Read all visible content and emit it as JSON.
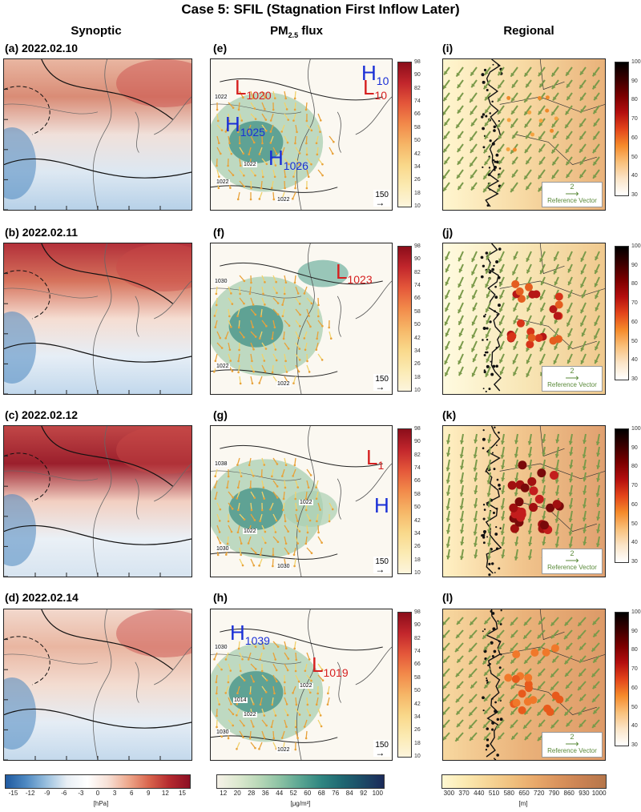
{
  "figure": {
    "title": "Case 5: SFIL (Stagnation First Inflow Later)",
    "columns": {
      "synoptic": "Synoptic",
      "pm25_flux_main": "PM",
      "pm25_flux_sub": "2.5",
      "pm25_flux_tail": " flux",
      "regional": "Regional"
    }
  },
  "rows": [
    {
      "synoptic_label": "(a) 2022.02.10",
      "flux_label": "(e)",
      "regional_label": "(i)",
      "systems": [
        {
          "type": "L",
          "value": "1020",
          "color": "red"
        },
        {
          "type": "H",
          "value": "1025",
          "color": "blue"
        },
        {
          "type": "H",
          "value": "1026",
          "color": "blue"
        },
        {
          "type": "H",
          "value": "10",
          "color": "blue"
        },
        {
          "type": "L",
          "value": "10",
          "color": "red"
        }
      ],
      "contours": [
        "1022",
        "1022",
        "1022",
        "1022"
      ]
    },
    {
      "synoptic_label": "(b) 2022.02.11",
      "flux_label": "(f)",
      "regional_label": "(j)",
      "systems": [
        {
          "type": "L",
          "value": "1023",
          "color": "red"
        }
      ],
      "contours": [
        "1030",
        "1022",
        "1022"
      ]
    },
    {
      "synoptic_label": "(c) 2022.02.12",
      "flux_label": "(g)",
      "regional_label": "(k)",
      "systems": [
        {
          "type": "L",
          "value": "1",
          "color": "red"
        },
        {
          "type": "H",
          "value": "",
          "color": "blue"
        }
      ],
      "contours": [
        "1038",
        "1030",
        "1030",
        "1022",
        "1022"
      ]
    },
    {
      "synoptic_label": "(d) 2022.02.14",
      "flux_label": "(h)",
      "regional_label": "(l)",
      "systems": [
        {
          "type": "H",
          "value": "1039",
          "color": "blue"
        },
        {
          "type": "L",
          "value": "1019",
          "color": "red"
        }
      ],
      "contours": [
        "1030",
        "1030",
        "1022",
        "1022",
        "1022",
        "1014"
      ]
    }
  ],
  "flux_scale_label": "150",
  "reference_vector": {
    "value": "2",
    "label": "Reference Vector"
  },
  "colorbars": {
    "flux_vertical": [
      "98",
      "90",
      "82",
      "74",
      "66",
      "58",
      "50",
      "42",
      "34",
      "26",
      "18",
      "10"
    ],
    "regional_vertical": [
      "100",
      "90",
      "80",
      "70",
      "60",
      "50",
      "40",
      "30"
    ],
    "synoptic_horizontal": {
      "ticks": [
        "-15",
        "-12",
        "-9",
        "-6",
        "-3",
        "0",
        "3",
        "6",
        "9",
        "12",
        "15"
      ],
      "unit": "[hPa]"
    },
    "flux_horizontal": {
      "ticks": [
        "12",
        "20",
        "28",
        "36",
        "44",
        "52",
        "60",
        "68",
        "76",
        "84",
        "92",
        "100"
      ],
      "unit": "[μg/m³]"
    },
    "regional_horizontal": {
      "ticks": [
        "300",
        "370",
        "440",
        "510",
        "580",
        "650",
        "720",
        "790",
        "860",
        "930",
        "1000"
      ],
      "unit": "[m]"
    }
  },
  "colors": {
    "synoptic_low": "#2f6db0",
    "synoptic_high": "#a0142a",
    "flux_low": "#f6f2e8",
    "flux_high": "#1b2a5a",
    "pm_low": "#ffffff",
    "pm_high": "#1a0000",
    "pbl_low": "#fff6cc",
    "pbl_high": "#b5764a",
    "wind_arrow": "#7a9a4a",
    "flux_arrow": "#e8a23a"
  }
}
